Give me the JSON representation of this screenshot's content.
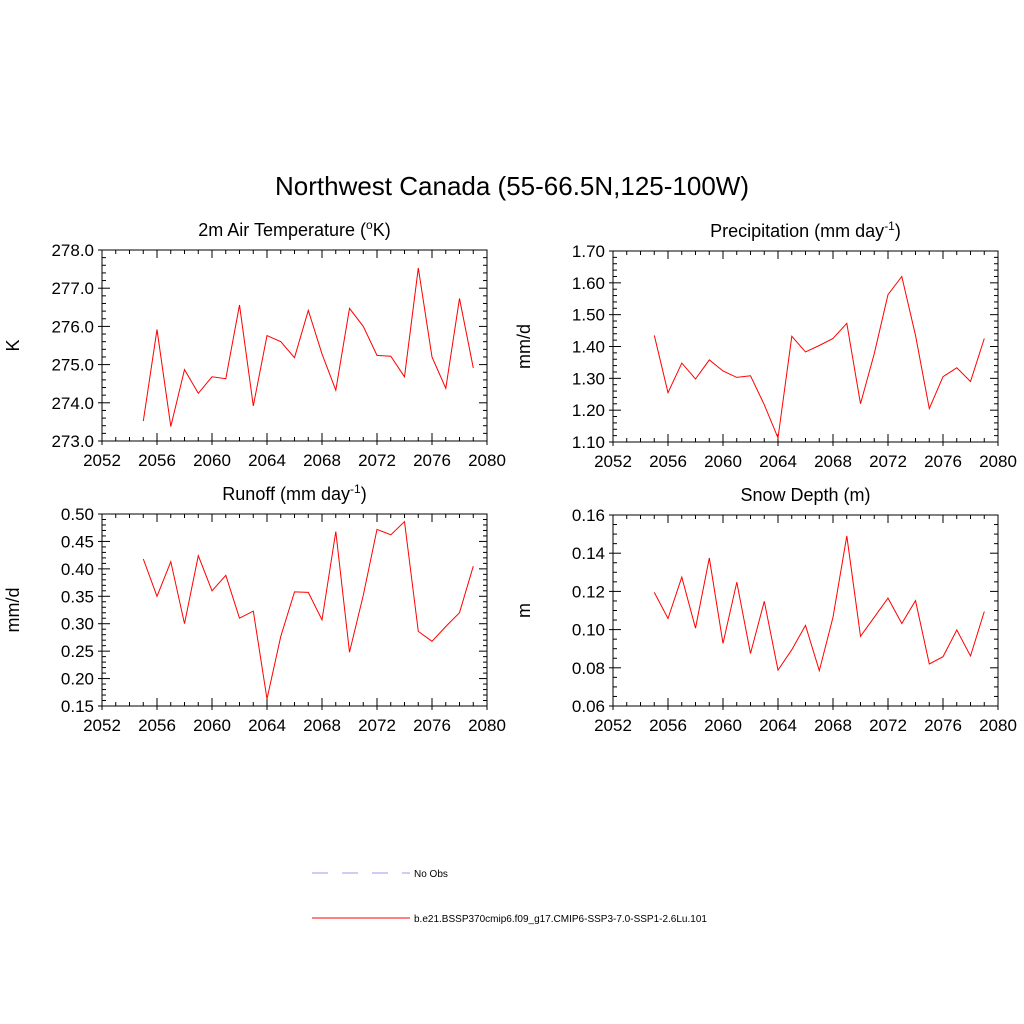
{
  "figure": {
    "title": "Northwest Canada (55-66.5N,125-100W)"
  },
  "legend": {
    "entries": [
      {
        "label": "No Obs",
        "color": "#9999ee",
        "dash": true
      },
      {
        "label": "b.e21.BSSP370cmip6.f09_g17.CMIP6-SSP3-7.0-SSP1-2.6Lu.101",
        "color": "#ff0000",
        "dash": false
      }
    ]
  },
  "chart_data": [
    {
      "type": "line",
      "title": "2m Air Temperature (",
      "title_sup": "o",
      "title_after": "K)",
      "ylabel": "K",
      "xlim": [
        2052,
        2080
      ],
      "ylim": [
        273.0,
        278.0
      ],
      "xticks": [
        2052,
        2056,
        2060,
        2064,
        2068,
        2072,
        2076,
        2080
      ],
      "yticks": [
        "273.0",
        "274.0",
        "275.0",
        "276.0",
        "277.0",
        "278.0"
      ],
      "x_minor_step": 1,
      "y_minor_step": 0.2,
      "series": [
        {
          "color": "#ff0000",
          "x": [
            2055,
            2056,
            2057,
            2058,
            2059,
            2060,
            2061,
            2062,
            2063,
            2064,
            2065,
            2066,
            2067,
            2068,
            2069,
            2070,
            2071,
            2072,
            2073,
            2074,
            2075,
            2076,
            2077,
            2078,
            2079
          ],
          "values": [
            273.52,
            275.92,
            273.38,
            274.87,
            274.25,
            274.68,
            274.63,
            276.56,
            273.92,
            275.76,
            275.6,
            275.18,
            276.42,
            275.28,
            274.33,
            276.47,
            276.0,
            275.24,
            275.22,
            274.68,
            277.53,
            275.2,
            274.38,
            276.73,
            274.91
          ]
        }
      ]
    },
    {
      "type": "line",
      "title": "Precipitation (mm day",
      "title_sup": "-1",
      "title_after": ")",
      "ylabel": "mm/d",
      "xlim": [
        2052,
        2080
      ],
      "ylim": [
        1.1,
        1.7
      ],
      "xticks": [
        2052,
        2056,
        2060,
        2064,
        2068,
        2072,
        2076,
        2080
      ],
      "yticks": [
        "1.10",
        "1.20",
        "1.30",
        "1.40",
        "1.50",
        "1.60",
        "1.70"
      ],
      "x_minor_step": 1,
      "y_minor_step": 0.02,
      "series": [
        {
          "color": "#ff0000",
          "x": [
            2055,
            2056,
            2057,
            2058,
            2059,
            2060,
            2061,
            2062,
            2063,
            2064,
            2065,
            2066,
            2067,
            2068,
            2069,
            2070,
            2071,
            2072,
            2073,
            2074,
            2075,
            2076,
            2077,
            2078,
            2079
          ],
          "values": [
            1.435,
            1.255,
            1.348,
            1.298,
            1.358,
            1.323,
            1.303,
            1.308,
            1.217,
            1.113,
            1.432,
            1.383,
            1.403,
            1.425,
            1.473,
            1.22,
            1.378,
            1.563,
            1.62,
            1.435,
            1.205,
            1.305,
            1.333,
            1.29,
            1.425
          ]
        }
      ]
    },
    {
      "type": "line",
      "title": "Runoff (mm day",
      "title_sup": "-1",
      "title_after": ")",
      "ylabel": "mm/d",
      "xlim": [
        2052,
        2080
      ],
      "ylim": [
        0.15,
        0.5
      ],
      "xticks": [
        2052,
        2056,
        2060,
        2064,
        2068,
        2072,
        2076,
        2080
      ],
      "yticks": [
        "0.15",
        "0.20",
        "0.25",
        "0.30",
        "0.35",
        "0.40",
        "0.45",
        "0.50"
      ],
      "x_minor_step": 1,
      "y_minor_step": 0.01,
      "series": [
        {
          "color": "#ff0000",
          "x": [
            2055,
            2056,
            2057,
            2058,
            2059,
            2060,
            2061,
            2062,
            2063,
            2064,
            2065,
            2066,
            2067,
            2068,
            2069,
            2070,
            2071,
            2072,
            2073,
            2074,
            2075,
            2076,
            2077,
            2078,
            2079
          ],
          "values": [
            0.418,
            0.35,
            0.413,
            0.3,
            0.424,
            0.36,
            0.388,
            0.31,
            0.323,
            0.163,
            0.277,
            0.358,
            0.357,
            0.307,
            0.468,
            0.248,
            0.352,
            0.472,
            0.462,
            0.486,
            0.286,
            0.268,
            0.295,
            0.32,
            0.405
          ]
        }
      ]
    },
    {
      "type": "line",
      "title": "Snow Depth (m)",
      "title_sup": "",
      "title_after": "",
      "ylabel": "m",
      "xlim": [
        2052,
        2080
      ],
      "ylim": [
        0.06,
        0.16
      ],
      "xticks": [
        2052,
        2056,
        2060,
        2064,
        2068,
        2072,
        2076,
        2080
      ],
      "yticks": [
        "0.06",
        "0.08",
        "0.10",
        "0.12",
        "0.14",
        "0.16"
      ],
      "x_minor_step": 1,
      "y_minor_step": 0.005,
      "series": [
        {
          "color": "#ff0000",
          "x": [
            2055,
            2056,
            2057,
            2058,
            2059,
            2060,
            2061,
            2062,
            2063,
            2064,
            2065,
            2066,
            2067,
            2068,
            2069,
            2070,
            2071,
            2072,
            2073,
            2074,
            2075,
            2076,
            2077,
            2078,
            2079
          ],
          "values": [
            0.1195,
            0.1058,
            0.1275,
            0.1008,
            0.1375,
            0.0928,
            0.1248,
            0.0875,
            0.1148,
            0.0788,
            0.0895,
            0.1022,
            0.0785,
            0.1065,
            0.149,
            0.0965,
            0.1065,
            0.1165,
            0.1032,
            0.1152,
            0.082,
            0.0858,
            0.0998,
            0.0862,
            0.1095
          ]
        }
      ]
    }
  ]
}
